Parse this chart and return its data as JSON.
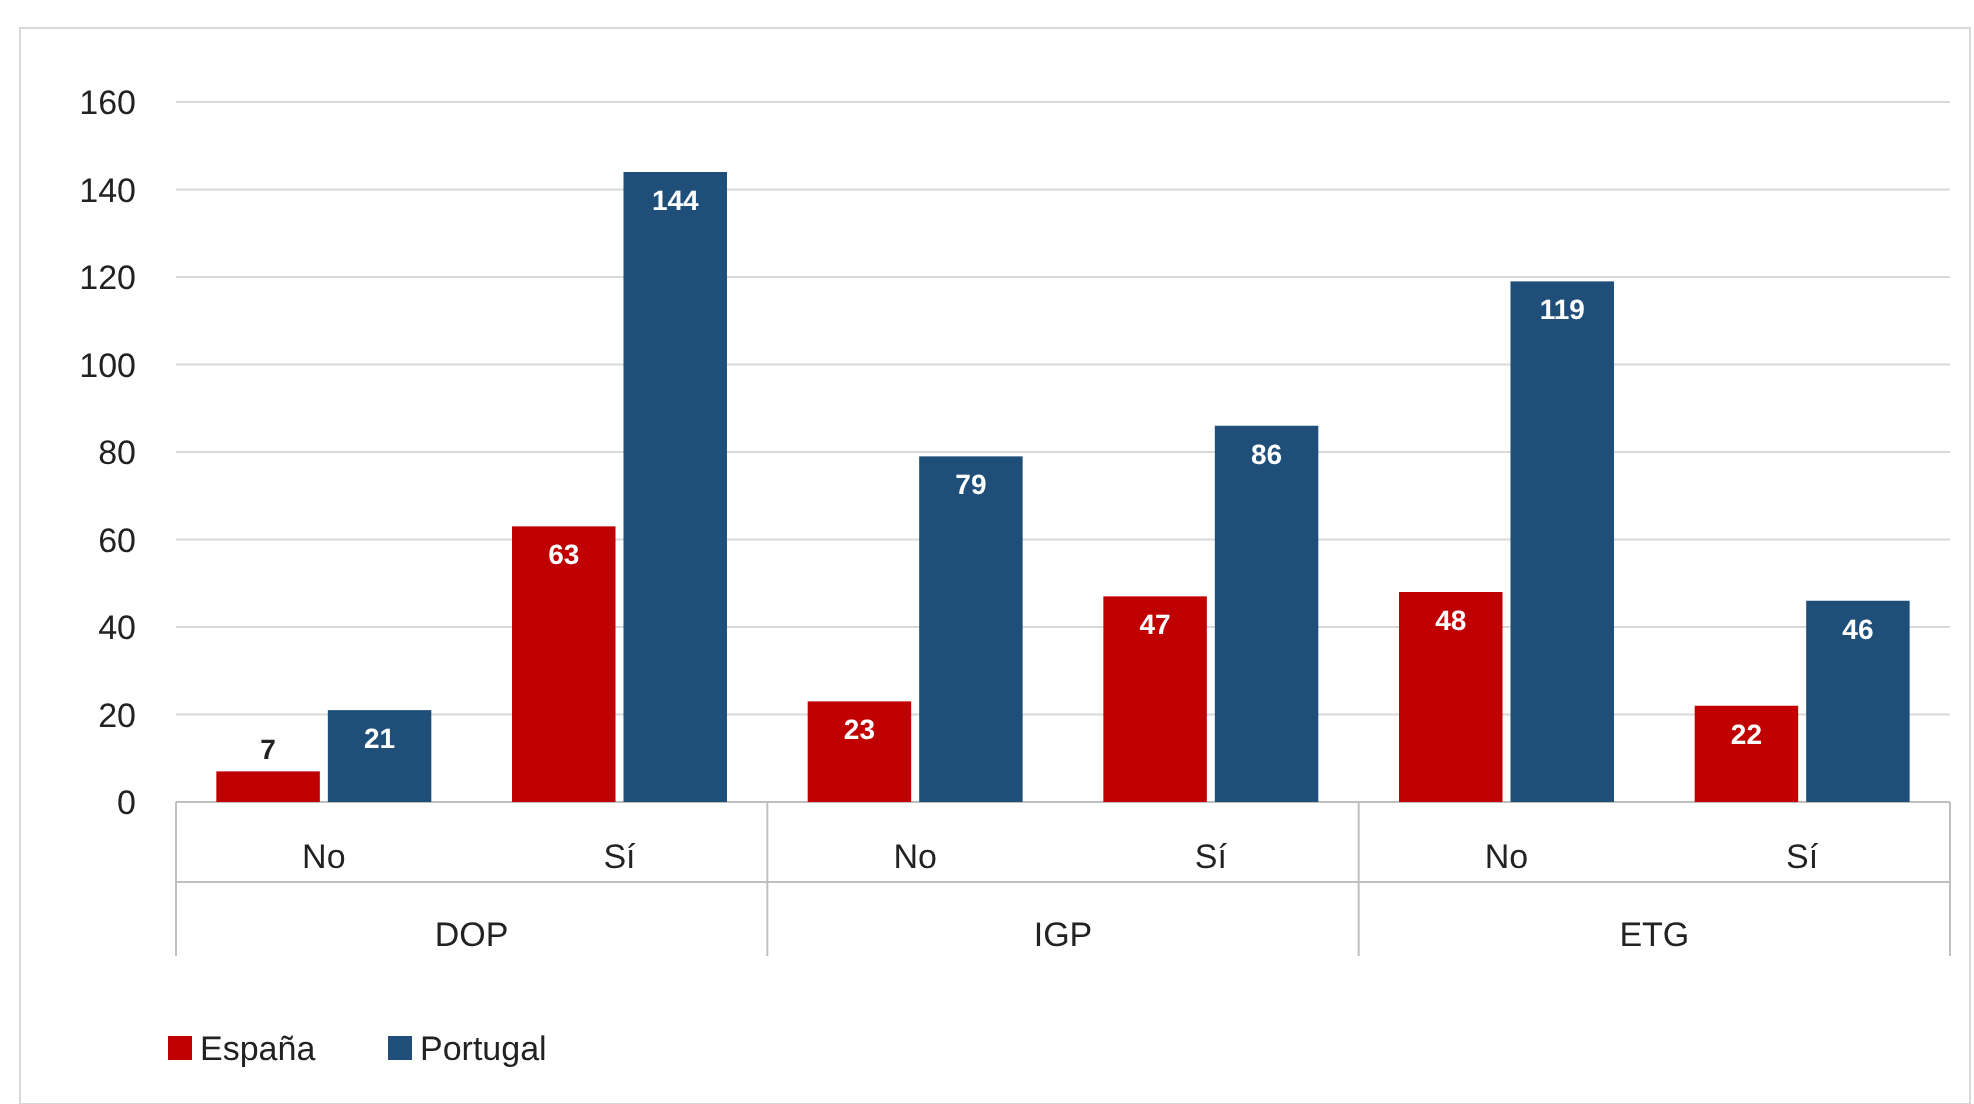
{
  "chart_data": {
    "type": "bar",
    "categories": [
      "No",
      "Sí",
      "No",
      "Sí",
      "No",
      "Sí"
    ],
    "series": [
      {
        "name": "España",
        "color": "#c00000",
        "values": [
          7,
          63,
          23,
          47,
          48,
          22
        ]
      },
      {
        "name": "Portugal",
        "color": "#1f4e79",
        "values": [
          21,
          144,
          79,
          86,
          119,
          46
        ]
      }
    ],
    "annotations": [
      "DOP",
      "IGP",
      "ETG"
    ],
    "ylim": [
      0,
      160
    ],
    "yticks": [
      0,
      20,
      40,
      60,
      80,
      100,
      120,
      140,
      160
    ],
    "grid": "y",
    "legend": "bottom left",
    "data_labels": true
  }
}
